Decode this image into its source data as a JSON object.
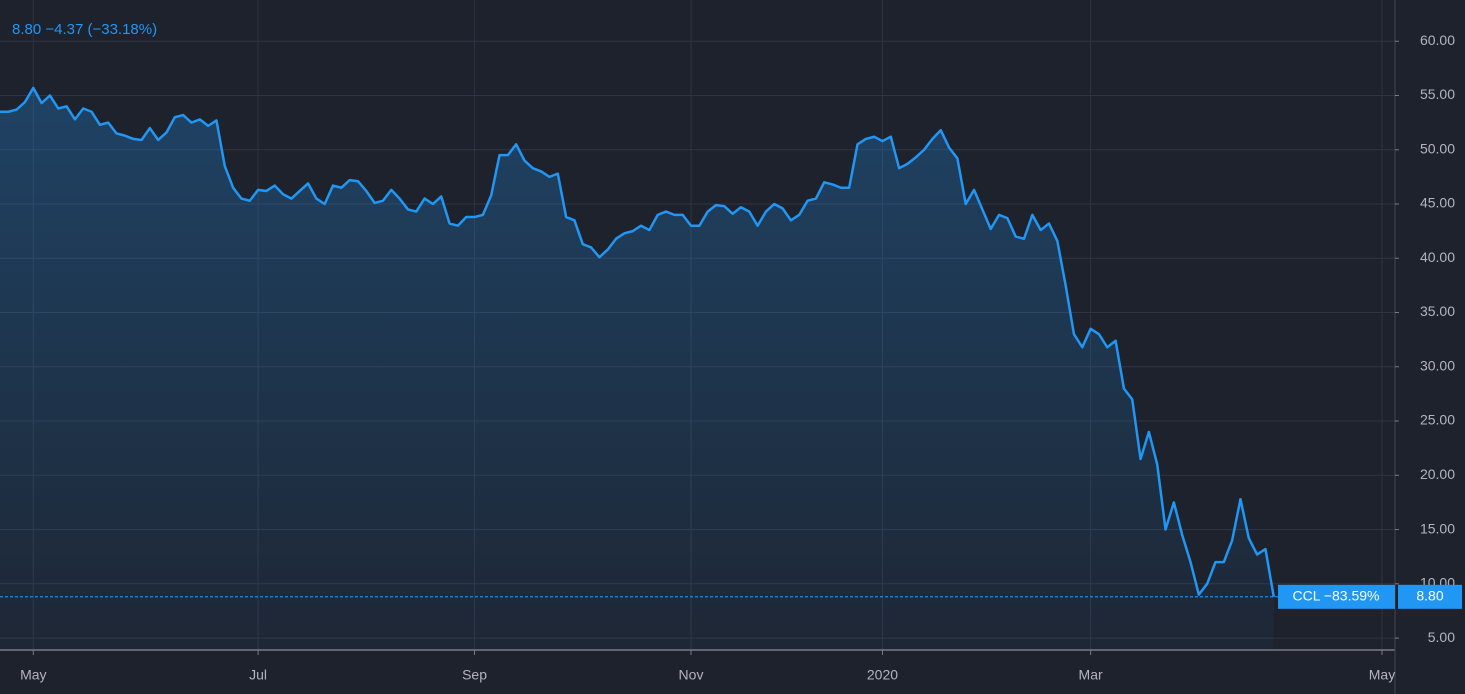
{
  "chart_data": {
    "type": "area",
    "subtitle": "8.80 −4.37 (−33.18%)",
    "symbol_label": "CCL −83.59%",
    "last_price_label": "8.80",
    "color": "#2196f3",
    "grid": true,
    "categories": [
      null,
      null,
      null,
      null,
      "May",
      null,
      null,
      null,
      null,
      null,
      null,
      null,
      null,
      null,
      null,
      null,
      null,
      null,
      null,
      null,
      null,
      null,
      null,
      null,
      null,
      null,
      null,
      null,
      null,
      null,
      null,
      "Jul",
      null,
      null,
      null,
      null,
      null,
      null,
      null,
      null,
      null,
      null,
      null,
      null,
      null,
      null,
      null,
      null,
      null,
      null,
      null,
      null,
      null,
      null,
      null,
      null,
      null,
      "Sep",
      null,
      null,
      null,
      null,
      null,
      null,
      null,
      null,
      null,
      null,
      null,
      null,
      null,
      null,
      null,
      null,
      null,
      null,
      null,
      null,
      null,
      null,
      null,
      null,
      null,
      "Nov",
      null,
      null,
      null,
      null,
      null,
      null,
      null,
      null,
      null,
      null,
      null,
      null,
      null,
      null,
      null,
      null,
      null,
      null,
      null,
      null,
      null,
      null,
      "2020",
      null,
      null,
      null,
      null,
      null,
      null,
      null,
      null,
      null,
      null,
      null,
      null,
      null,
      null,
      null,
      null,
      null,
      null,
      null,
      null,
      null,
      null,
      null,
      null,
      "Mar",
      null,
      null,
      null,
      null,
      null,
      null,
      null,
      null,
      null,
      null,
      null,
      null,
      null,
      null,
      null,
      null,
      null,
      null,
      null,
      null,
      null,
      null,
      null,
      null,
      null,
      null,
      null,
      null,
      null,
      null,
      null,
      null,
      null,
      null,
      "May"
    ],
    "values": [
      53.5,
      53.5,
      53.7,
      54.4,
      55.7,
      54.3,
      55.0,
      53.8,
      54.0,
      52.8,
      53.8,
      53.5,
      52.3,
      52.5,
      51.5,
      51.3,
      51.0,
      50.9,
      52.0,
      50.9,
      51.6,
      53.0,
      53.2,
      52.5,
      52.8,
      52.2,
      52.7,
      48.5,
      46.5,
      45.5,
      45.3,
      46.3,
      46.2,
      46.7,
      45.9,
      45.5,
      46.2,
      46.9,
      45.5,
      45.0,
      46.7,
      46.5,
      47.2,
      47.1,
      46.2,
      45.1,
      45.3,
      46.3,
      45.5,
      44.5,
      44.3,
      45.5,
      45.0,
      45.7,
      43.2,
      43.0,
      43.8,
      43.8,
      44.0,
      45.8,
      49.5,
      49.5,
      50.5,
      49.0,
      48.3,
      48.0,
      47.5,
      47.8,
      43.8,
      43.5,
      41.3,
      41.0,
      40.1,
      40.8,
      41.8,
      42.3,
      42.5,
      43.0,
      42.6,
      44.0,
      44.3,
      44.0,
      44.0,
      43.0,
      43.0,
      44.3,
      44.9,
      44.8,
      44.1,
      44.7,
      44.3,
      43.0,
      44.3,
      45.0,
      44.6,
      43.5,
      44.0,
      45.3,
      45.5,
      47.0,
      46.8,
      46.5,
      46.5,
      50.5,
      51.0,
      51.2,
      50.8,
      51.2,
      48.3,
      48.7,
      49.3,
      50.0,
      51.0,
      51.8,
      50.2,
      49.2,
      45.0,
      46.3,
      44.5,
      42.7,
      44.0,
      43.7,
      42.0,
      41.8,
      44.0,
      42.6,
      43.2,
      41.6,
      37.5,
      33.0,
      31.8,
      33.5,
      33.0,
      31.8,
      32.4,
      28.0,
      27.0,
      21.5,
      24.0,
      21.0,
      15.0,
      17.5,
      14.5,
      12.0,
      9.0,
      10.0,
      12.0,
      12.0,
      14.0,
      17.8,
      14.2,
      12.7,
      13.2,
      8.8,
      null,
      null,
      null,
      null,
      null,
      null,
      null,
      null,
      null,
      null,
      null,
      null,
      null
    ],
    "ylim": [
      3.9,
      63.8
    ],
    "yticks": [
      {
        "value": 5,
        "label": "5.00"
      },
      {
        "value": 10,
        "label": "10.00"
      },
      {
        "value": 15,
        "label": "15.00"
      },
      {
        "value": 20,
        "label": "20.00"
      },
      {
        "value": 25,
        "label": "25.00"
      },
      {
        "value": 30,
        "label": "30.00"
      },
      {
        "value": 35,
        "label": "35.00"
      },
      {
        "value": 40,
        "label": "40.00"
      },
      {
        "value": 45,
        "label": "45.00"
      },
      {
        "value": 50,
        "label": "50.00"
      },
      {
        "value": 55,
        "label": "55.00"
      },
      {
        "value": 60,
        "label": "60.00"
      }
    ]
  }
}
